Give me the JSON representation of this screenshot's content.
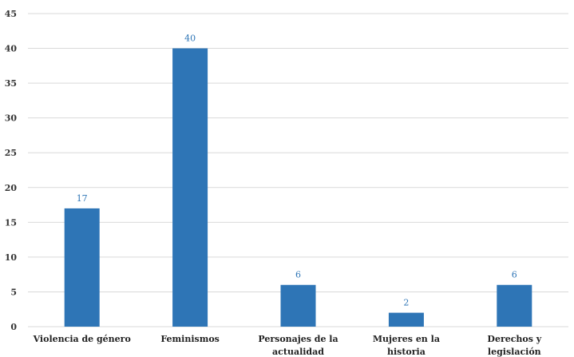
{
  "chart_data": {
    "type": "bar",
    "categories": [
      "Violencia de género",
      "Feminismos",
      "Personajes de la actualidad",
      "Mujeres en la historia",
      "Derechos y legislación"
    ],
    "values": [
      17,
      40,
      6,
      2,
      6
    ],
    "data_labels": [
      "17",
      "40",
      "6",
      "2",
      "6"
    ],
    "title": "",
    "xlabel": "",
    "ylabel": "",
    "ylim": [
      0,
      45
    ],
    "yticks": [
      0,
      5,
      10,
      15,
      20,
      25,
      30,
      35,
      40,
      45
    ],
    "grid": true,
    "legend": "none",
    "bar_color": "#2e75b6",
    "label_color": "#2e75b6"
  }
}
